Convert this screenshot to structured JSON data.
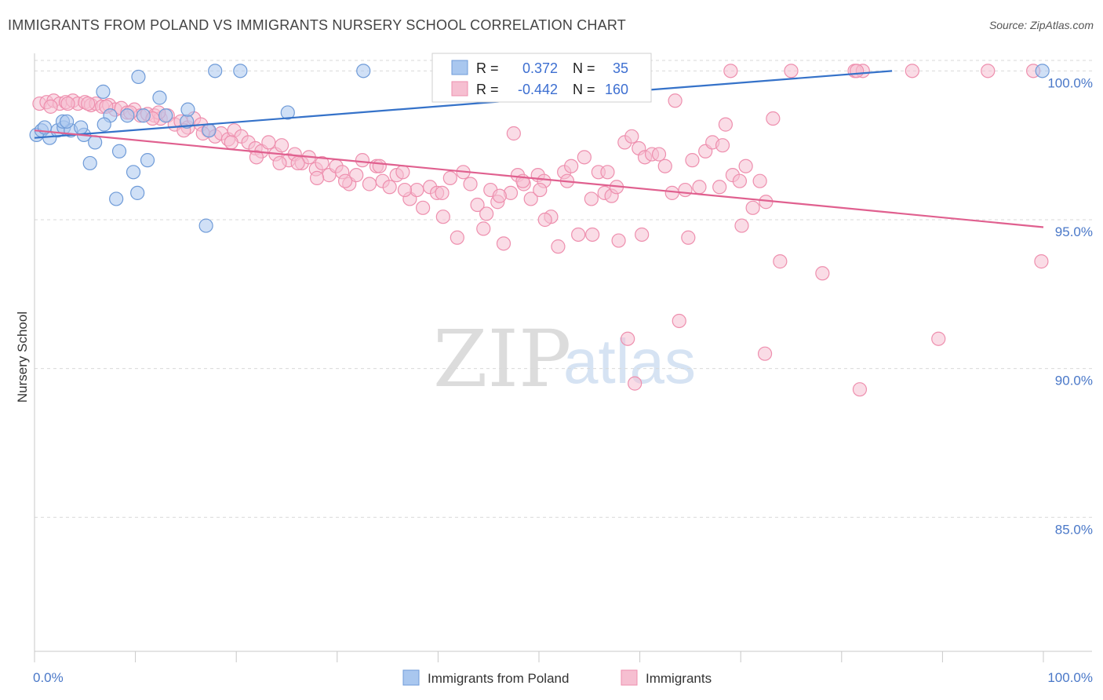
{
  "title": "IMMIGRANTS FROM POLAND VS IMMIGRANTS NURSERY SCHOOL CORRELATION CHART",
  "source": "Source: ZipAtlas.com",
  "watermark": {
    "zip": "ZIP",
    "atlas": "atlas"
  },
  "stats": {
    "r_label": "R =",
    "n_label": "N =",
    "rows": [
      {
        "r": "0.372",
        "n": "35"
      },
      {
        "r": "-0.442",
        "n": "160"
      }
    ]
  },
  "colors": {
    "blue_fill": "#a9c7ef",
    "blue_stroke": "#6f9bd8",
    "blue_line": "#3572c9",
    "pink_fill": "#f6bfd1",
    "pink_stroke": "#ee8fae",
    "pink_line": "#e0608f",
    "grid": "#d9d9d9",
    "axis_text": "#4a78c8"
  },
  "chart_data": {
    "type": "scatter",
    "title": "IMMIGRANTS FROM POLAND VS IMMIGRANTS NURSERY SCHOOL CORRELATION CHART",
    "xlabel": "",
    "ylabel": "Nursery School",
    "xlim": [
      0,
      100
    ],
    "ylim": [
      80.5,
      100.8
    ],
    "x_tick_labels": [
      "0.0%",
      "100.0%"
    ],
    "y_ticks": [
      85,
      90,
      95,
      100
    ],
    "y_tick_labels": [
      "85.0%",
      "90.0%",
      "95.0%",
      "100.0%"
    ],
    "legend_position": "bottom",
    "series": [
      {
        "name": "Immigrants from Poland",
        "r": 0.372,
        "n": 35,
        "trend": [
          [
            0,
            97.75
          ],
          [
            85,
            100.0
          ]
        ],
        "points": [
          [
            0.2,
            97.85
          ],
          [
            0.7,
            98.0
          ],
          [
            1.5,
            97.75
          ],
          [
            2.3,
            98.0
          ],
          [
            2.9,
            98.1
          ],
          [
            3.6,
            98.0
          ],
          [
            1.0,
            98.1
          ],
          [
            4.9,
            97.85
          ],
          [
            2.8,
            98.3
          ],
          [
            4.6,
            98.1
          ],
          [
            3.2,
            98.3
          ],
          [
            7.5,
            98.5
          ],
          [
            6.9,
            98.2
          ],
          [
            9.2,
            98.5
          ],
          [
            13.0,
            98.5
          ],
          [
            15.1,
            98.3
          ],
          [
            17.3,
            98.0
          ],
          [
            10.3,
            99.8
          ],
          [
            17.9,
            100.0
          ],
          [
            20.4,
            100.0
          ],
          [
            32.6,
            100.0
          ],
          [
            99.9,
            100.0
          ],
          [
            15.2,
            98.7
          ],
          [
            6.8,
            99.3
          ],
          [
            12.4,
            99.1
          ],
          [
            25.1,
            98.6
          ],
          [
            10.8,
            98.5
          ],
          [
            6.0,
            97.6
          ],
          [
            8.4,
            97.3
          ],
          [
            5.5,
            96.9
          ],
          [
            11.2,
            97.0
          ],
          [
            9.8,
            96.6
          ],
          [
            8.1,
            95.7
          ],
          [
            10.2,
            95.9
          ],
          [
            17.0,
            94.8
          ]
        ]
      },
      {
        "name": "Immigrants",
        "r": -0.442,
        "n": 160,
        "trend": [
          [
            0,
            98.0
          ],
          [
            100,
            94.75
          ]
        ],
        "points": [
          [
            0.5,
            98.9
          ],
          [
            1.2,
            98.95
          ],
          [
            1.9,
            99.0
          ],
          [
            2.5,
            98.9
          ],
          [
            3.1,
            98.95
          ],
          [
            3.8,
            99.0
          ],
          [
            4.3,
            98.9
          ],
          [
            5.0,
            98.95
          ],
          [
            5.6,
            98.85
          ],
          [
            6.1,
            98.9
          ],
          [
            6.7,
            98.8
          ],
          [
            7.4,
            98.85
          ],
          [
            8.0,
            98.7
          ],
          [
            8.6,
            98.75
          ],
          [
            9.2,
            98.6
          ],
          [
            9.9,
            98.7
          ],
          [
            10.5,
            98.5
          ],
          [
            11.2,
            98.55
          ],
          [
            11.9,
            98.5
          ],
          [
            12.5,
            98.4
          ],
          [
            13.2,
            98.5
          ],
          [
            13.9,
            98.2
          ],
          [
            14.5,
            98.3
          ],
          [
            15.2,
            98.1
          ],
          [
            15.8,
            98.4
          ],
          [
            16.5,
            98.2
          ],
          [
            17.2,
            98.0
          ],
          [
            17.9,
            97.8
          ],
          [
            18.5,
            97.9
          ],
          [
            19.2,
            97.7
          ],
          [
            19.8,
            98.0
          ],
          [
            20.5,
            97.8
          ],
          [
            21.2,
            97.6
          ],
          [
            21.9,
            97.4
          ],
          [
            22.5,
            97.3
          ],
          [
            23.2,
            97.6
          ],
          [
            23.9,
            97.2
          ],
          [
            24.5,
            97.5
          ],
          [
            25.2,
            97.0
          ],
          [
            25.8,
            97.2
          ],
          [
            26.5,
            96.9
          ],
          [
            27.2,
            97.1
          ],
          [
            27.9,
            96.7
          ],
          [
            28.5,
            96.9
          ],
          [
            29.2,
            96.5
          ],
          [
            29.9,
            96.8
          ],
          [
            30.5,
            96.6
          ],
          [
            31.2,
            96.2
          ],
          [
            31.9,
            96.5
          ],
          [
            32.5,
            97.0
          ],
          [
            33.2,
            96.2
          ],
          [
            33.9,
            96.8
          ],
          [
            34.5,
            96.3
          ],
          [
            35.2,
            96.1
          ],
          [
            35.9,
            96.5
          ],
          [
            36.5,
            96.6
          ],
          [
            37.2,
            95.7
          ],
          [
            37.9,
            96.0
          ],
          [
            38.5,
            95.4
          ],
          [
            39.2,
            96.1
          ],
          [
            39.9,
            95.9
          ],
          [
            40.5,
            95.1
          ],
          [
            41.2,
            96.4
          ],
          [
            41.9,
            94.4
          ],
          [
            42.5,
            96.6
          ],
          [
            43.2,
            96.2
          ],
          [
            43.9,
            95.5
          ],
          [
            44.5,
            94.7
          ],
          [
            45.2,
            96.0
          ],
          [
            45.9,
            95.6
          ],
          [
            46.5,
            94.2
          ],
          [
            47.2,
            95.9
          ],
          [
            47.9,
            96.5
          ],
          [
            48.5,
            96.2
          ],
          [
            49.2,
            95.7
          ],
          [
            49.9,
            96.5
          ],
          [
            50.5,
            96.3
          ],
          [
            51.2,
            95.1
          ],
          [
            51.9,
            94.1
          ],
          [
            52.5,
            96.6
          ],
          [
            53.2,
            96.8
          ],
          [
            53.9,
            94.5
          ],
          [
            54.5,
            97.1
          ],
          [
            55.2,
            95.7
          ],
          [
            55.9,
            96.6
          ],
          [
            56.5,
            95.9
          ],
          [
            57.2,
            95.8
          ],
          [
            57.9,
            94.3
          ],
          [
            58.5,
            97.6
          ],
          [
            59.2,
            97.8
          ],
          [
            59.9,
            97.4
          ],
          [
            60.5,
            97.1
          ],
          [
            61.2,
            97.2
          ],
          [
            61.9,
            97.2
          ],
          [
            62.5,
            96.8
          ],
          [
            63.2,
            95.9
          ],
          [
            63.9,
            91.6
          ],
          [
            64.5,
            96.0
          ],
          [
            65.2,
            97.0
          ],
          [
            65.9,
            96.1
          ],
          [
            66.5,
            97.3
          ],
          [
            67.2,
            97.6
          ],
          [
            67.9,
            96.1
          ],
          [
            68.5,
            98.2
          ],
          [
            69.2,
            96.5
          ],
          [
            69.9,
            96.3
          ],
          [
            70.5,
            96.8
          ],
          [
            71.2,
            95.4
          ],
          [
            71.9,
            96.3
          ],
          [
            72.5,
            95.6
          ],
          [
            73.2,
            98.4
          ],
          [
            47.5,
            97.9
          ],
          [
            50.1,
            96.0
          ],
          [
            52.8,
            96.3
          ],
          [
            56.8,
            96.6
          ],
          [
            60.2,
            94.5
          ],
          [
            64.8,
            94.4
          ],
          [
            68.2,
            97.5
          ],
          [
            70.1,
            94.8
          ],
          [
            69.0,
            100.0
          ],
          [
            75.0,
            100.0
          ],
          [
            81.3,
            100.0
          ],
          [
            82.1,
            100.0
          ],
          [
            87.0,
            100.0
          ],
          [
            94.5,
            100.0
          ],
          [
            99.0,
            100.0
          ],
          [
            81.5,
            100.0
          ],
          [
            63.5,
            99.0
          ],
          [
            58.8,
            91.0
          ],
          [
            59.5,
            89.5
          ],
          [
            72.4,
            90.5
          ],
          [
            81.8,
            89.3
          ],
          [
            78.1,
            93.2
          ],
          [
            89.6,
            91.0
          ],
          [
            73.9,
            93.6
          ],
          [
            99.8,
            93.6
          ],
          [
            55.3,
            94.5
          ],
          [
            50.6,
            95.0
          ],
          [
            57.7,
            96.1
          ],
          [
            46.1,
            95.8
          ],
          [
            48.4,
            96.3
          ],
          [
            44.8,
            95.2
          ],
          [
            40.4,
            95.9
          ],
          [
            36.7,
            96.0
          ],
          [
            34.2,
            96.8
          ],
          [
            30.8,
            96.3
          ],
          [
            28.0,
            96.4
          ],
          [
            26.1,
            96.9
          ],
          [
            24.3,
            96.9
          ],
          [
            22.0,
            97.1
          ],
          [
            19.5,
            97.6
          ],
          [
            16.7,
            97.9
          ],
          [
            14.8,
            98.0
          ],
          [
            12.3,
            98.6
          ],
          [
            11.7,
            98.4
          ],
          [
            9.5,
            98.6
          ],
          [
            7.1,
            98.8
          ],
          [
            5.3,
            98.9
          ],
          [
            3.3,
            98.9
          ],
          [
            1.6,
            98.8
          ]
        ]
      }
    ]
  }
}
